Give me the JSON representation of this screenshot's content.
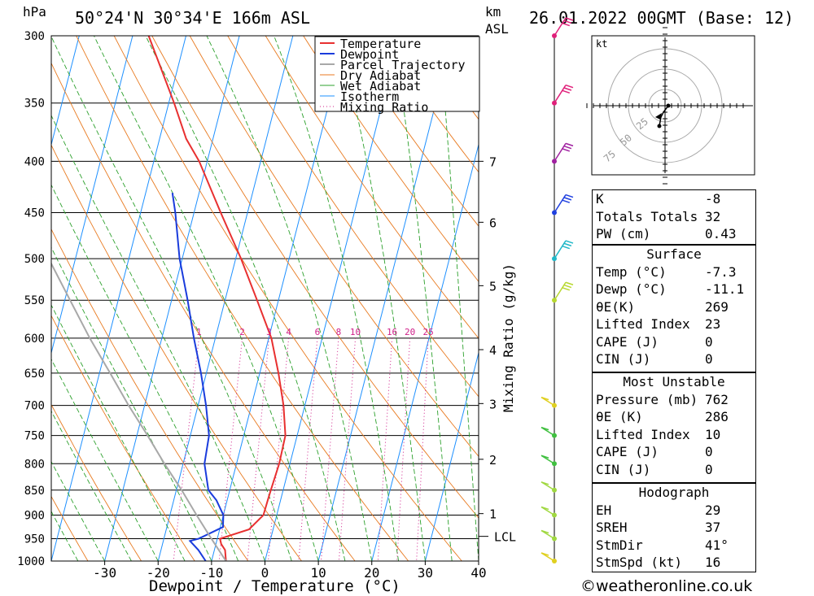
{
  "header": {
    "units_hpa": "hPa",
    "location": "50°24'N 30°34'E 166m ASL",
    "units_km": "km",
    "units_asl": "ASL",
    "datetime": "26.01.2022 00GMT (Base: 12)"
  },
  "chart_data": {
    "type": "line",
    "title": "50°24'N 30°34'E 166m ASL",
    "xlabel": "Dewpoint / Temperature (°C)",
    "ylabel": "hPa",
    "y2label": "Mixing Ratio (g/kg)",
    "xlim": [
      -40,
      40
    ],
    "ylim": [
      1000,
      300
    ],
    "y_scale": "log",
    "grid": true,
    "legend_position": "top-right",
    "pressure_ticks": [
      300,
      350,
      400,
      450,
      500,
      550,
      600,
      650,
      700,
      750,
      800,
      850,
      900,
      950,
      1000
    ],
    "temperature_ticks": [
      -30,
      -20,
      -10,
      0,
      10,
      20,
      30,
      40
    ],
    "km_ticks": [
      {
        "km": "7",
        "p": 400
      },
      {
        "km": "6",
        "p": 460
      },
      {
        "km": "5",
        "p": 532
      },
      {
        "km": "4",
        "p": 616
      },
      {
        "km": "3",
        "p": 697
      },
      {
        "km": "2",
        "p": 792
      },
      {
        "km": "1",
        "p": 897
      }
    ],
    "lcl_label": "LCL",
    "lcl_pressure": 945,
    "mixing_ratio_labels": [
      "1",
      "2",
      "3",
      "4",
      "6",
      "8",
      "10",
      "16",
      "20",
      "25"
    ],
    "legend": [
      "Temperature",
      "Dewpoint",
      "Parcel Trajectory",
      "Dry Adiabat",
      "Wet Adiabat",
      "Isotherm",
      "Mixing Ratio"
    ],
    "series": [
      {
        "name": "Temperature",
        "color": "#e83030",
        "points": [
          [
            1000,
            -7.3
          ],
          [
            975,
            -8
          ],
          [
            962,
            -9
          ],
          [
            950,
            -9.5
          ],
          [
            930,
            -4.5
          ],
          [
            900,
            -2.5
          ],
          [
            870,
            -2.4
          ],
          [
            850,
            -2.3
          ],
          [
            800,
            -2
          ],
          [
            750,
            -2.2
          ],
          [
            700,
            -4
          ],
          [
            650,
            -6.5
          ],
          [
            600,
            -9.5
          ],
          [
            550,
            -14
          ],
          [
            500,
            -19
          ],
          [
            450,
            -25
          ],
          [
            400,
            -31.5
          ],
          [
            380,
            -35
          ],
          [
            350,
            -39
          ],
          [
            300,
            -47
          ]
        ]
      },
      {
        "name": "Dewpoint",
        "color": "#1a3cdc",
        "points": [
          [
            1000,
            -11.1
          ],
          [
            975,
            -13
          ],
          [
            955,
            -15
          ],
          [
            950,
            -13.5
          ],
          [
            925,
            -9.5
          ],
          [
            900,
            -10
          ],
          [
            870,
            -12
          ],
          [
            850,
            -14
          ],
          [
            800,
            -16
          ],
          [
            750,
            -16.5
          ],
          [
            700,
            -18.5
          ],
          [
            650,
            -21
          ],
          [
            600,
            -24
          ],
          [
            550,
            -27
          ],
          [
            500,
            -30.5
          ],
          [
            450,
            -33.5
          ],
          [
            430,
            -35
          ]
        ]
      },
      {
        "name": "Parcel Trajectory",
        "color": "#a8a8a8",
        "points": [
          [
            1000,
            -7.3
          ],
          [
            945,
            -11.5
          ],
          [
            900,
            -15
          ],
          [
            850,
            -19
          ],
          [
            800,
            -23.5
          ],
          [
            750,
            -28
          ],
          [
            700,
            -33
          ],
          [
            650,
            -38
          ],
          [
            600,
            -43.5
          ],
          [
            550,
            -49
          ],
          [
            500,
            -55
          ],
          [
            450,
            -61
          ],
          [
            400,
            -67
          ],
          [
            370,
            -71
          ]
        ]
      }
    ],
    "wind_barbs": [
      {
        "p": 300,
        "color": "#e0207a"
      },
      {
        "p": 350,
        "color": "#e0207a"
      },
      {
        "p": 400,
        "color": "#a020a0"
      },
      {
        "p": 450,
        "color": "#2040e0"
      },
      {
        "p": 500,
        "color": "#20b8c8"
      },
      {
        "p": 550,
        "color": "#b8d830"
      },
      {
        "p": 700,
        "color": "#e0d020"
      },
      {
        "p": 750,
        "color": "#40c040"
      },
      {
        "p": 800,
        "color": "#40c040"
      },
      {
        "p": 850,
        "color": "#a0d840"
      },
      {
        "p": 900,
        "color": "#a0d840"
      },
      {
        "p": 950,
        "color": "#a0d840"
      },
      {
        "p": 1000,
        "color": "#e0d020"
      }
    ],
    "hodograph": {
      "unit": "kt",
      "ring_labels": [
        "25",
        "50",
        "75"
      ]
    }
  },
  "indices": {
    "k_label": "K",
    "k_value": "-8",
    "tt_label": "Totals Totals",
    "tt_value": "32",
    "pw_label": "PW (cm)",
    "pw_value": "0.43"
  },
  "surface": {
    "title": "Surface",
    "temp_label": "Temp (°C)",
    "temp_value": "-7.3",
    "dewp_label": "Dewp (°C)",
    "dewp_value": "-11.1",
    "theta_label": "θE(K)",
    "theta_value": "269",
    "li_label": "Lifted Index",
    "li_value": "23",
    "cape_label": "CAPE (J)",
    "cape_value": "0",
    "cin_label": "CIN (J)",
    "cin_value": "0"
  },
  "most_unstable": {
    "title": "Most Unstable",
    "pressure_label": "Pressure (mb)",
    "pressure_value": "762",
    "theta_label": "θE (K)",
    "theta_value": "286",
    "li_label": "Lifted Index",
    "li_value": "10",
    "cape_label": "CAPE (J)",
    "cape_value": "0",
    "cin_label": "CIN (J)",
    "cin_value": "0"
  },
  "hodograph_table": {
    "title": "Hodograph",
    "eh_label": "EH",
    "eh_value": "29",
    "sreh_label": "SREH",
    "sreh_value": "37",
    "stmdir_label": "StmDir",
    "stmdir_value": "41°",
    "stmspd_label": "StmSpd (kt)",
    "stmspd_value": "16"
  },
  "footer": {
    "copyright": "©weatheronline.co.uk"
  }
}
